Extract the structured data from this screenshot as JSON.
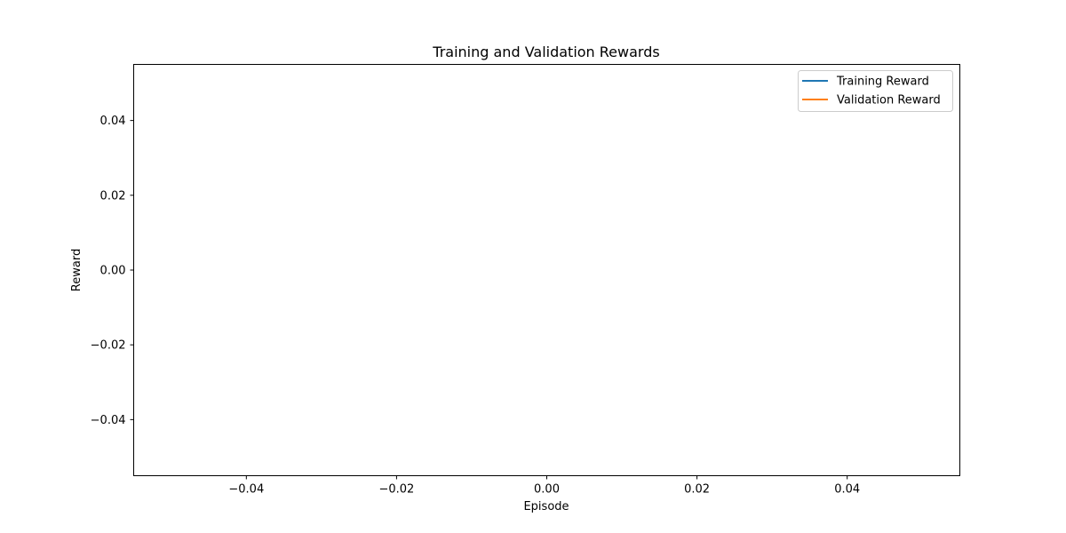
{
  "chart_data": {
    "type": "line",
    "title": "Training and Validation Rewards",
    "xlabel": "Episode",
    "ylabel": "Reward",
    "xlim": [
      -0.055,
      0.055
    ],
    "ylim": [
      -0.055,
      0.055
    ],
    "x_ticks": [
      -0.04,
      -0.02,
      0.0,
      0.02,
      0.04
    ],
    "x_tick_labels": [
      "−0.04",
      "−0.02",
      "0.00",
      "0.02",
      "0.04"
    ],
    "y_ticks": [
      0.04,
      0.02,
      0.0,
      -0.02,
      -0.04
    ],
    "y_tick_labels": [
      "0.04",
      "0.02",
      "0.00",
      "−0.02",
      "−0.04"
    ],
    "grid": false,
    "legend_position": "top-right",
    "series": [
      {
        "name": "Training Reward",
        "color": "#1f77b4",
        "x": [],
        "y": []
      },
      {
        "name": "Validation Reward",
        "color": "#ff7f0e",
        "x": [],
        "y": []
      }
    ]
  }
}
